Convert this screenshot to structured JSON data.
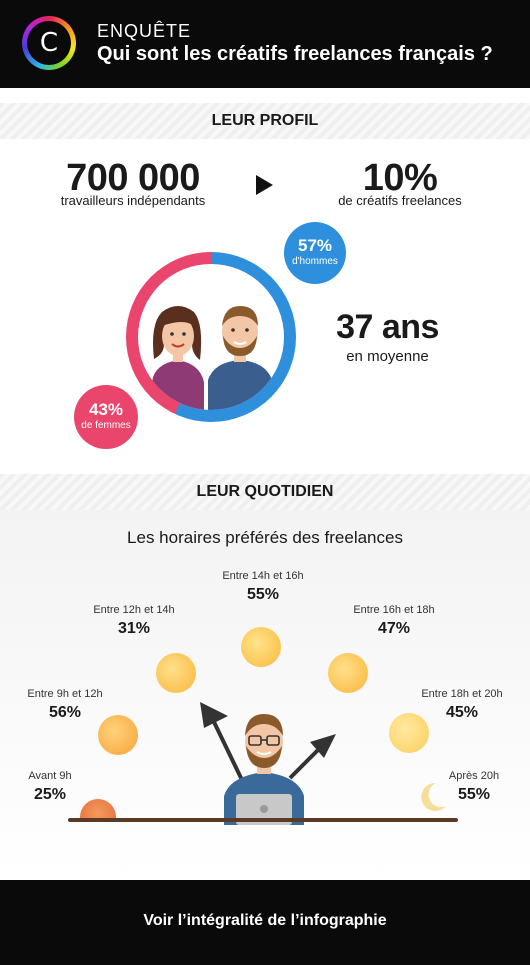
{
  "header": {
    "logo_letter": "C",
    "kicker": "ENQUÊTE",
    "title": "Qui sont les créatifs freelances français ?"
  },
  "profil": {
    "section_title": "LEUR PROFIL",
    "workers_number": "700 000",
    "workers_label": "travailleurs indépendants",
    "creatives_pct": "10%",
    "creatives_label": "de créatifs freelances",
    "men_pct": "57%",
    "men_label": "d'hommes",
    "women_pct": "43%",
    "women_label": "de femmes",
    "men_share": 57,
    "women_share": 43,
    "age_value": "37 ans",
    "age_label": "en moyenne",
    "colors": {
      "men": "#2e8fdc",
      "women": "#e9456d"
    }
  },
  "quotidien": {
    "section_title": "LEUR QUOTIDIEN",
    "subtitle": "Les horaires préférés des freelances",
    "slots": [
      {
        "label": "Avant 9h",
        "pct": "25%",
        "icon": "rising-sun-icon"
      },
      {
        "label": "Entre 9h et 12h",
        "pct": "56%",
        "icon": "sun-icon"
      },
      {
        "label": "Entre 12h et 14h",
        "pct": "31%",
        "icon": "sun-icon"
      },
      {
        "label": "Entre 14h et 16h",
        "pct": "55%",
        "icon": "sun-icon"
      },
      {
        "label": "Entre 16h et 18h",
        "pct": "47%",
        "icon": "sun-icon"
      },
      {
        "label": "Entre 18h et 20h",
        "pct": "45%",
        "icon": "sun-icon"
      },
      {
        "label": "Après 20h",
        "pct": "55%",
        "icon": "moon-icon"
      }
    ]
  },
  "footer": {
    "link_label": "Voir l’intégralité de l’infographie"
  }
}
